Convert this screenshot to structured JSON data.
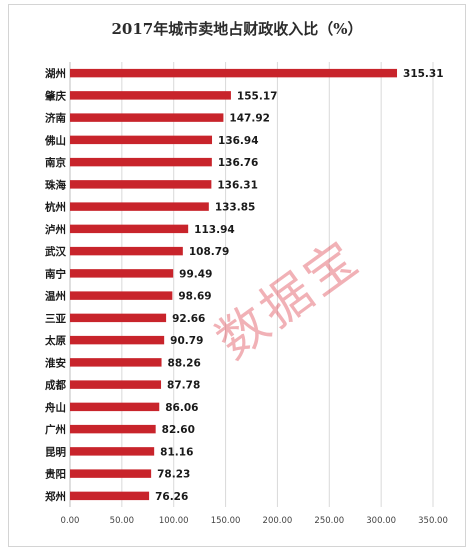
{
  "chart_data": {
    "type": "bar",
    "orientation": "horizontal",
    "title": "2017年城市卖地占财政收入比（%）",
    "categories": [
      "湖州",
      "肇庆",
      "济南",
      "佛山",
      "南京",
      "珠海",
      "杭州",
      "泸州",
      "武汉",
      "南宁",
      "温州",
      "三亚",
      "太原",
      "淮安",
      "成都",
      "舟山",
      "广州",
      "昆明",
      "贵阳",
      "郑州"
    ],
    "values": [
      315.31,
      155.17,
      147.92,
      136.94,
      136.76,
      136.31,
      133.85,
      113.94,
      108.79,
      99.49,
      98.69,
      92.66,
      90.79,
      88.26,
      87.78,
      86.06,
      82.6,
      81.16,
      78.23,
      76.26
    ],
    "value_labels": [
      "315.31",
      "155.17",
      "147.92",
      "136.94",
      "136.76",
      "136.31",
      "133.85",
      "113.94",
      "108.79",
      "99.49",
      "98.69",
      "92.66",
      "90.79",
      "88.26",
      "87.78",
      "86.06",
      "82.60",
      "81.16",
      "78.23",
      "76.26"
    ],
    "xlim": [
      0,
      350
    ],
    "x_ticks": [
      0,
      50,
      100,
      150,
      200,
      250,
      300,
      350
    ],
    "x_tick_labels": [
      "0.00",
      "50.00",
      "100.00",
      "150.00",
      "200.00",
      "250.00",
      "300.00",
      "350.00"
    ],
    "grid": true,
    "bar_color": "#c8242b",
    "grid_color": "#d9d9d9"
  },
  "watermark": "数据宝",
  "watermark_color": "#de4650"
}
